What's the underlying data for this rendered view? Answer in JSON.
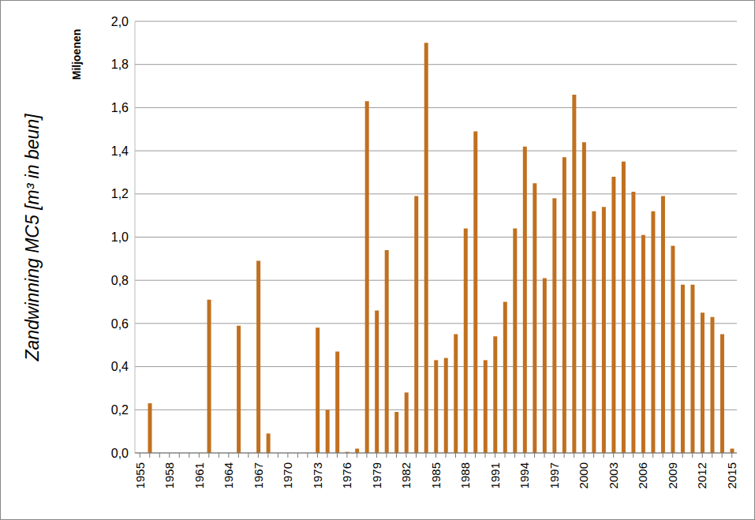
{
  "chart_data": {
    "type": "bar",
    "y_label": "Zandwinning MC5 [m³ in beun]",
    "annotations": [
      "Miljoenen"
    ],
    "categories": [
      "1955",
      null,
      null,
      "1958",
      null,
      null,
      "1961",
      null,
      null,
      "1964",
      null,
      null,
      "1967",
      null,
      null,
      "1970",
      null,
      null,
      "1973",
      null,
      null,
      "1976",
      null,
      null,
      "1979",
      null,
      null,
      "1982",
      null,
      null,
      "1985",
      null,
      null,
      "1988",
      null,
      null,
      "1991",
      null,
      null,
      "1994",
      null,
      null,
      "1997",
      null,
      null,
      "2000",
      null,
      null,
      "2003",
      null,
      null,
      "2006",
      null,
      null,
      "2009",
      null,
      null,
      "2012",
      null,
      null,
      "2015"
    ],
    "values": [
      0,
      0.23,
      0,
      0,
      0,
      0,
      0,
      0.71,
      0,
      0,
      0.59,
      0,
      0.89,
      0.09,
      0,
      0,
      0,
      0,
      0.58,
      0.2,
      0.47,
      0.005,
      0.02,
      1.63,
      0.66,
      0.94,
      0.19,
      0.28,
      1.19,
      1.9,
      0.43,
      0.44,
      0.55,
      1.04,
      1.49,
      0.43,
      0.54,
      0.7,
      1.04,
      1.42,
      1.25,
      0.81,
      1.18,
      1.37,
      1.66,
      1.44,
      1.12,
      1.14,
      1.28,
      1.35,
      1.21,
      1.01,
      1.12,
      1.19,
      0.96,
      0.78,
      0.78,
      0.65,
      0.63,
      0.55,
      0.02
    ],
    "color": "#c0701f",
    "ylim": [
      0,
      2
    ],
    "yticks": [
      {
        "value": 0,
        "label": "0,0"
      },
      {
        "value": 0.2,
        "label": "0,2"
      },
      {
        "value": 0.4,
        "label": "0,4"
      },
      {
        "value": 0.6,
        "label": "0,6"
      },
      {
        "value": 0.8,
        "label": "0,8"
      },
      {
        "value": 1,
        "label": "1,0"
      },
      {
        "value": 1.2,
        "label": "1,2"
      },
      {
        "value": 1.4,
        "label": "1,4"
      },
      {
        "value": 1.6,
        "label": "1,6"
      },
      {
        "value": 1.8,
        "label": "1,8"
      },
      {
        "value": 2,
        "label": "2,0"
      }
    ],
    "grid": true
  }
}
